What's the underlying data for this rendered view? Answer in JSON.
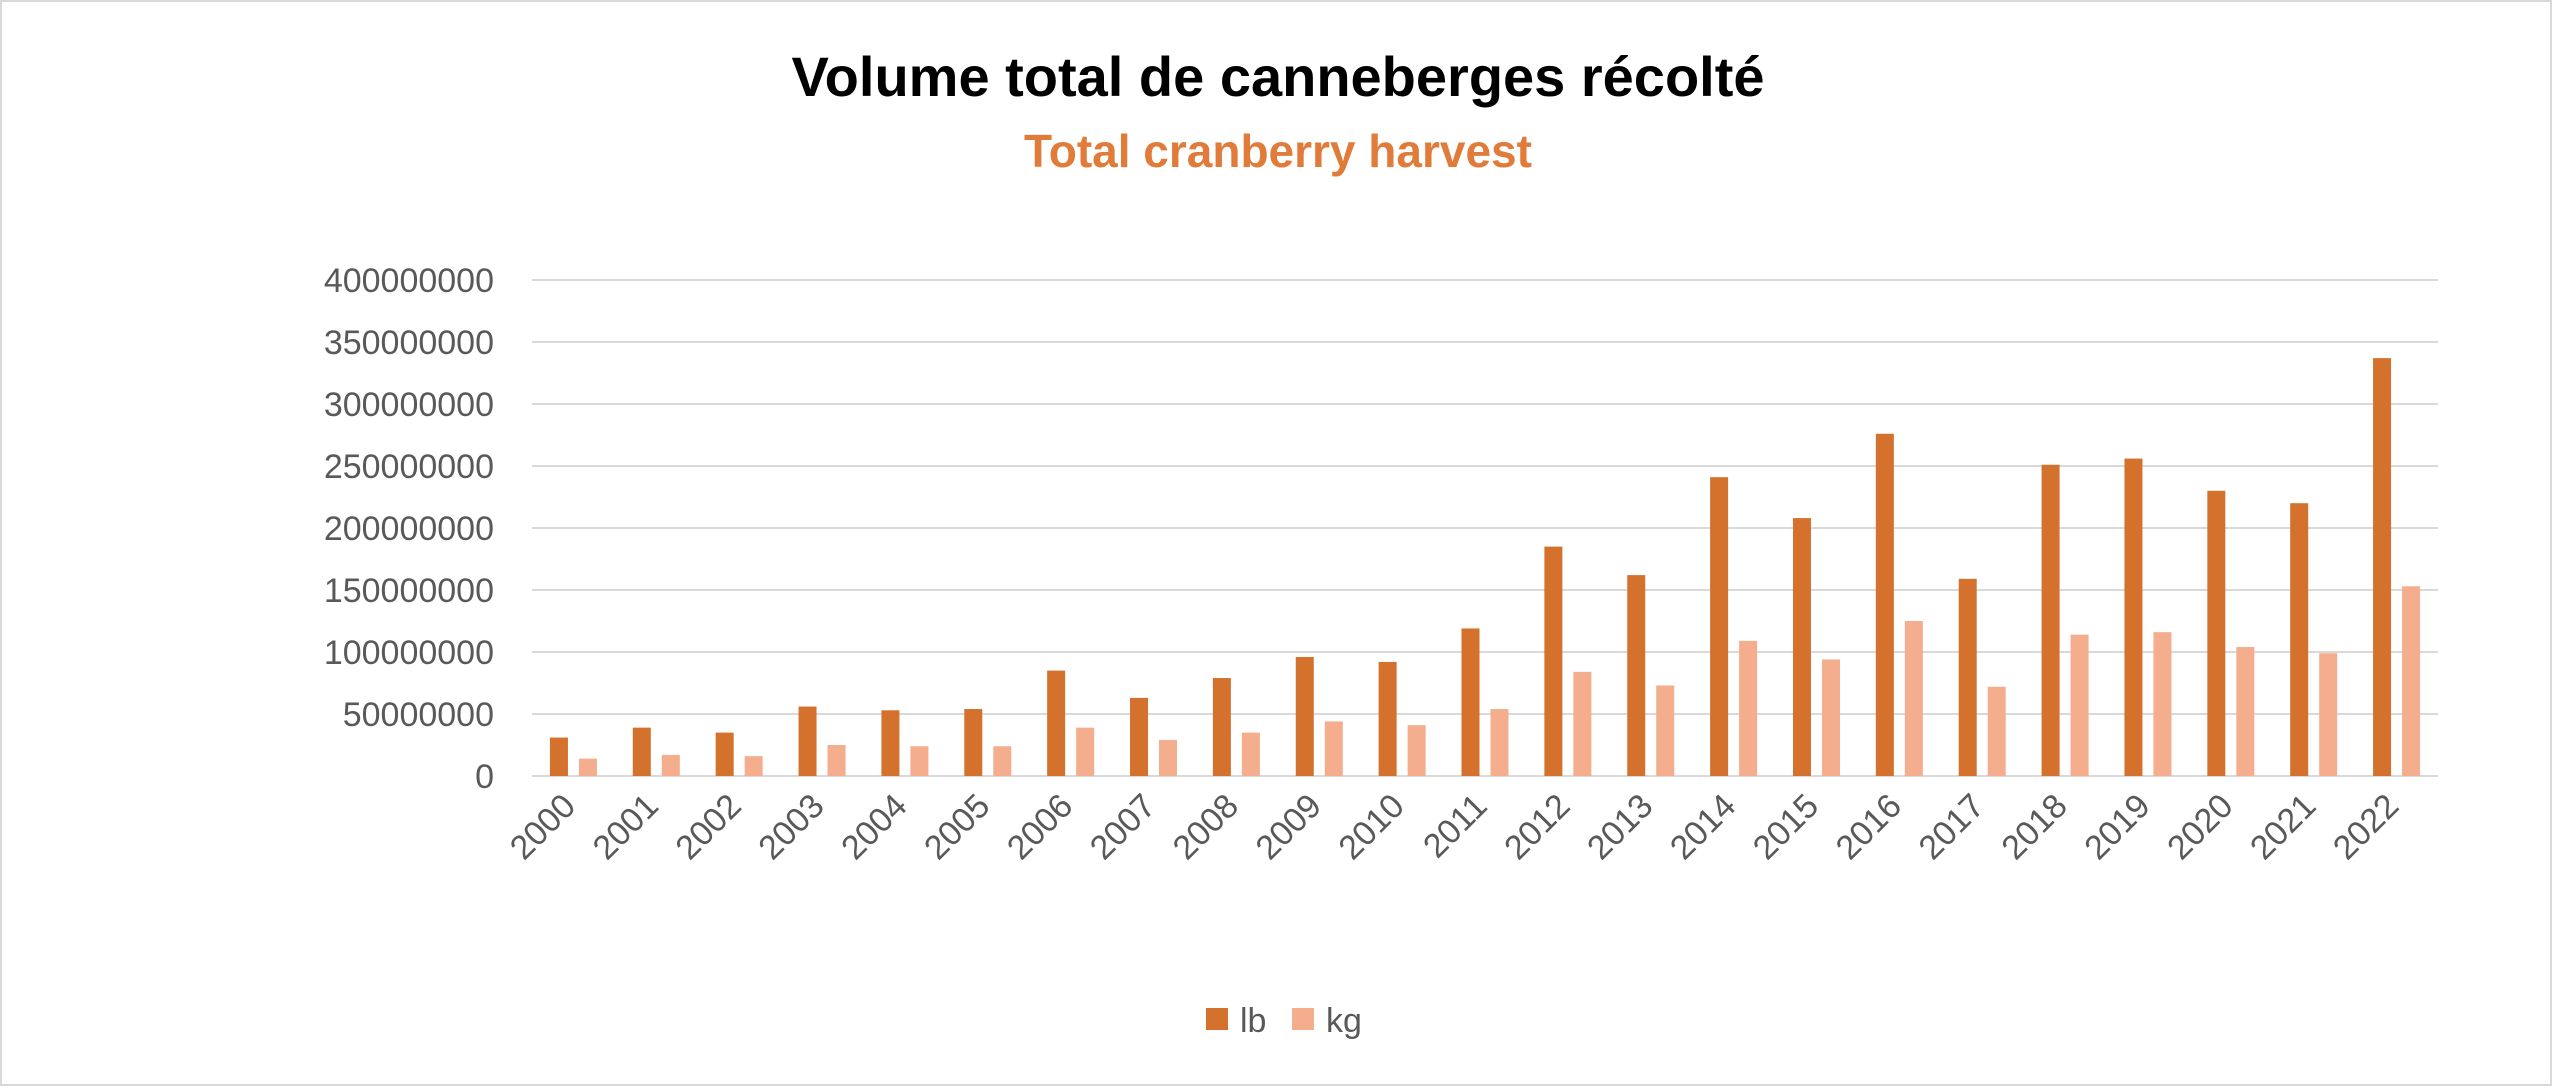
{
  "chart_data": {
    "type": "bar",
    "title": "Volume total de canneberges récolté",
    "subtitle": "Total cranberry harvest",
    "xlabel": "",
    "ylabel": "",
    "ylim": [
      0,
      400000000
    ],
    "yticks": [
      0,
      50000000,
      100000000,
      150000000,
      200000000,
      250000000,
      300000000,
      350000000,
      400000000
    ],
    "ytick_labels": [
      "0",
      "50000000",
      "100000000",
      "150000000",
      "200000000",
      "250000000",
      "300000000",
      "350000000",
      "400000000"
    ],
    "grid": true,
    "legend_position": "bottom",
    "categories": [
      "2000",
      "2001",
      "2002",
      "2003",
      "2004",
      "2005",
      "2006",
      "2007",
      "2008",
      "2009",
      "2010",
      "2011",
      "2012",
      "2013",
      "2014",
      "2015",
      "2016",
      "2017",
      "2018",
      "2019",
      "2020",
      "2021",
      "2022"
    ],
    "series": [
      {
        "name": "lb",
        "color": "#d4712d",
        "values": [
          31000000,
          39000000,
          35000000,
          56000000,
          53000000,
          54000000,
          85000000,
          63000000,
          79000000,
          96000000,
          92000000,
          119000000,
          185000000,
          162000000,
          241000000,
          208000000,
          276000000,
          159000000,
          251000000,
          256000000,
          230000000,
          220000000,
          337000000
        ]
      },
      {
        "name": "kg",
        "color": "#f4ad8d",
        "values": [
          14000000,
          17000000,
          16000000,
          25000000,
          24000000,
          24000000,
          39000000,
          29000000,
          35000000,
          44000000,
          41000000,
          54000000,
          84000000,
          73000000,
          109000000,
          94000000,
          125000000,
          72000000,
          114000000,
          116000000,
          104000000,
          99000000,
          153000000
        ]
      }
    ]
  },
  "colors": {
    "title": "#000000",
    "subtitle": "#e07b39",
    "grid": "#d9d9d9",
    "axis": "#d9d9d9"
  }
}
